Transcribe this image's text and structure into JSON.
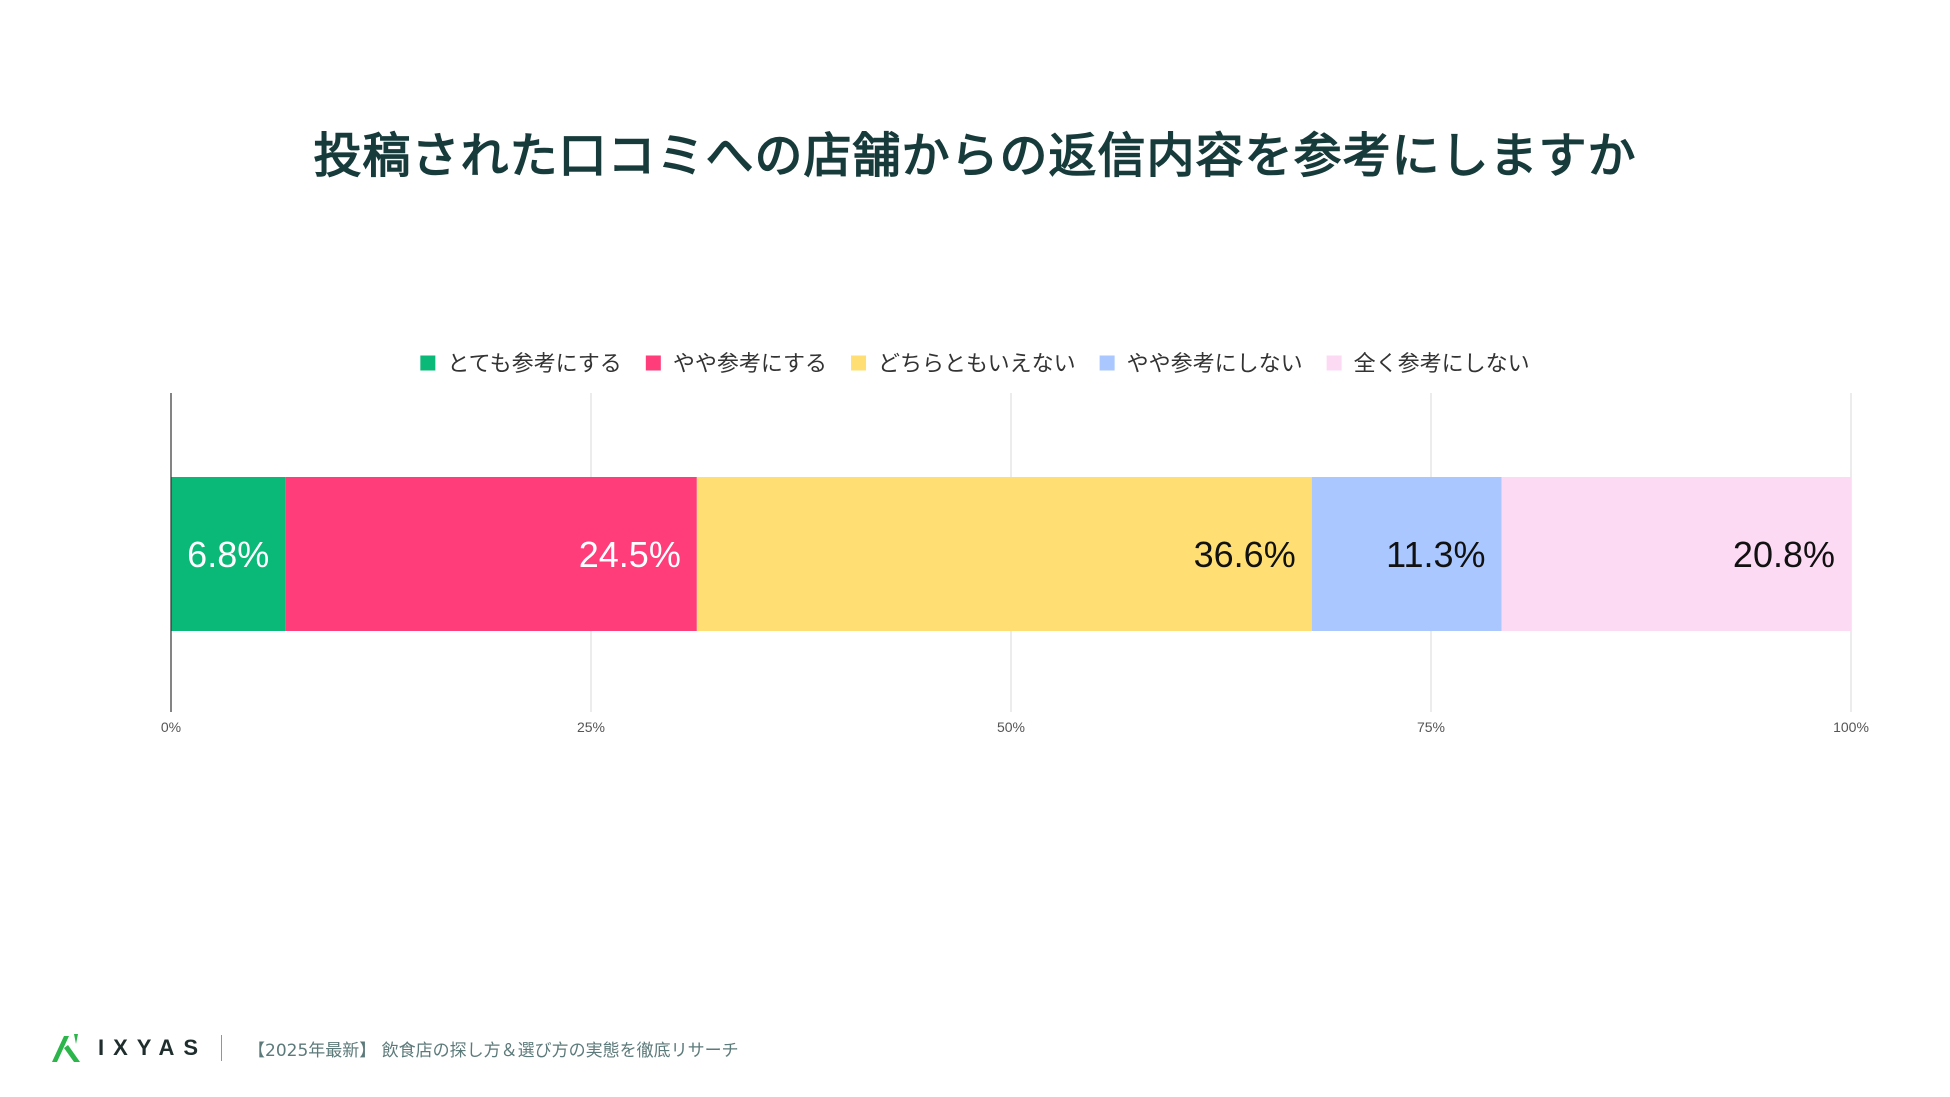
{
  "chart_data": {
    "type": "bar",
    "orientation": "horizontal",
    "stacked": "percent",
    "title": "投稿された口コミへの店舗からの返信内容を参考にしますか",
    "categories": [
      ""
    ],
    "series": [
      {
        "name": "とても参考にする",
        "values": [
          6.8
        ],
        "label": "6.8%",
        "color": "#0ab877",
        "label_color": "#ffffff"
      },
      {
        "name": "やや参考にする",
        "values": [
          24.5
        ],
        "label": "24.5%",
        "color": "#ff3d7a",
        "label_color": "#ffffff"
      },
      {
        "name": "どちらともいえない",
        "values": [
          36.6
        ],
        "label": "36.6%",
        "color": "#ffdf73",
        "label_color": "#111111"
      },
      {
        "name": "やや参考にしない",
        "values": [
          11.3
        ],
        "label": "11.3%",
        "color": "#aac8ff",
        "label_color": "#111111"
      },
      {
        "name": "全く参考にしない",
        "values": [
          20.8
        ],
        "label": "20.8%",
        "color": "#fddaf4",
        "label_color": "#111111"
      }
    ],
    "xlim": [
      0,
      100
    ],
    "x_ticks": [
      0,
      25,
      50,
      75,
      100
    ],
    "x_tick_labels": [
      "0%",
      "25%",
      "50%",
      "75%",
      "100%"
    ],
    "grid": true,
    "legend": "top-center"
  },
  "footer": {
    "brand": "IXYAS",
    "caption": "【2025年最新】 飲食店の探し方＆選び方の実態を徹底リサーチ"
  }
}
